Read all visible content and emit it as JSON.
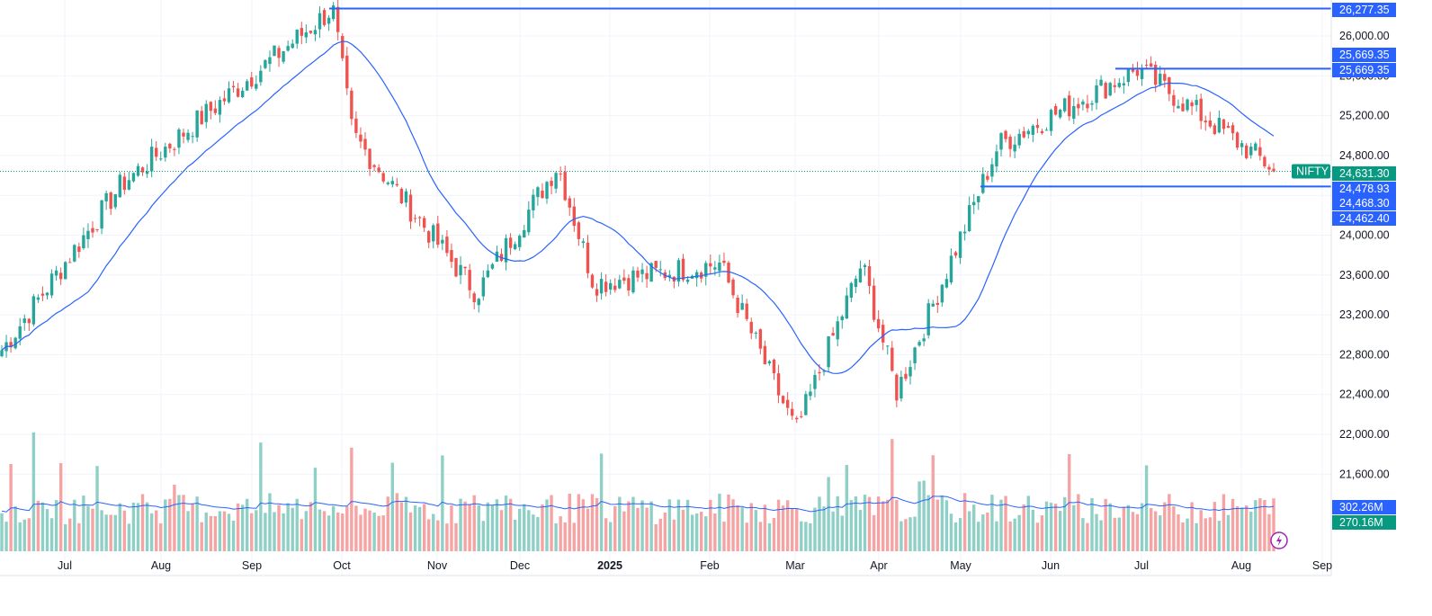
{
  "symbol": "NIFTY",
  "icons": {
    "bottom_right": "lightning-bolt-icon"
  },
  "colors": {
    "up": "#26a69a",
    "down": "#ef5350",
    "up_volume": "#8fd0c6",
    "down_volume": "#f5a3a3",
    "ma": "#2962ff",
    "level_line": "#2962ff",
    "badge": "#2962ff",
    "last_price_badge": "#089981",
    "grid": "#f0f3fa"
  },
  "chart_data": {
    "type": "candlestick",
    "y_axis": {
      "range": [
        21700,
        26330
      ],
      "ticks": [
        "26,000.00",
        "25,600.00",
        "25,200.00",
        "24,800.00",
        "24,400.00",
        "24,000.00",
        "23,600.00",
        "23,200.00",
        "22,800.00",
        "22,400.00",
        "22,000.00",
        "21,600.00"
      ]
    },
    "x_axis": {
      "labels": [
        {
          "text": "Jul",
          "bold": false
        },
        {
          "text": "Aug",
          "bold": false
        },
        {
          "text": "Sep",
          "bold": false
        },
        {
          "text": "Oct",
          "bold": false
        },
        {
          "text": "Nov",
          "bold": false
        },
        {
          "text": "Dec",
          "bold": false
        },
        {
          "text": "2025",
          "bold": true
        },
        {
          "text": "Feb",
          "bold": false
        },
        {
          "text": "Mar",
          "bold": false
        },
        {
          "text": "Apr",
          "bold": false
        },
        {
          "text": "May",
          "bold": false
        },
        {
          "text": "Jun",
          "bold": false
        },
        {
          "text": "Jul",
          "bold": false
        },
        {
          "text": "Aug",
          "bold": false
        },
        {
          "text": "Sep",
          "bold": false
        }
      ]
    },
    "series": [
      {
        "name": "NIFTY",
        "kind": "candlestick",
        "description": "daily OHLC (approximate trend)",
        "anchors": [
          {
            "period": "late Jun 2024",
            "close": 22800
          },
          {
            "period": "Aug 2024",
            "close": 24500
          },
          {
            "period": "end Sep 2024",
            "close": 26277
          },
          {
            "period": "early Oct 2024",
            "close": 25000
          },
          {
            "period": "mid Nov 2024",
            "close": 23400
          },
          {
            "period": "mid Dec 2024",
            "close": 24700
          },
          {
            "period": "Jan 2025",
            "close": 23500
          },
          {
            "period": "early Feb 2025",
            "close": 23700
          },
          {
            "period": "early Mar 2025",
            "close": 22000
          },
          {
            "period": "late Mar 2025",
            "close": 23700
          },
          {
            "period": "early Apr 2025",
            "close": 22400
          },
          {
            "period": "May 2025",
            "close": 24900
          },
          {
            "period": "early Jul 2025",
            "close": 25669
          },
          {
            "period": "mid Aug 2025",
            "close": 24631
          }
        ]
      },
      {
        "name": "MA",
        "kind": "line",
        "description": "moving average of price"
      },
      {
        "name": "Volume",
        "kind": "bar",
        "description": "daily volume with moving average"
      }
    ],
    "horizontal_levels": [
      26277.35,
      25669.35,
      24478.93
    ],
    "price_badges": [
      {
        "label": "26,277.35",
        "value": 26277.35,
        "style": "level"
      },
      {
        "label": "25,669.35",
        "value": 25669.35,
        "style": "level"
      },
      {
        "label": "25,669.35",
        "value": 25669.35,
        "style": "level"
      },
      {
        "label": "24,631.30",
        "value": 24631.3,
        "style": "last"
      },
      {
        "label": "24,478.93",
        "value": 24478.93,
        "style": "level"
      },
      {
        "label": "24,468.30",
        "value": 24468.3,
        "style": "level"
      },
      {
        "label": "24,462.40",
        "value": 24462.4,
        "style": "level"
      }
    ],
    "volume_badges": [
      {
        "label": "302.26M",
        "style": "level"
      },
      {
        "label": "270.16M",
        "style": "last"
      }
    ],
    "last_price": 24631.3
  }
}
